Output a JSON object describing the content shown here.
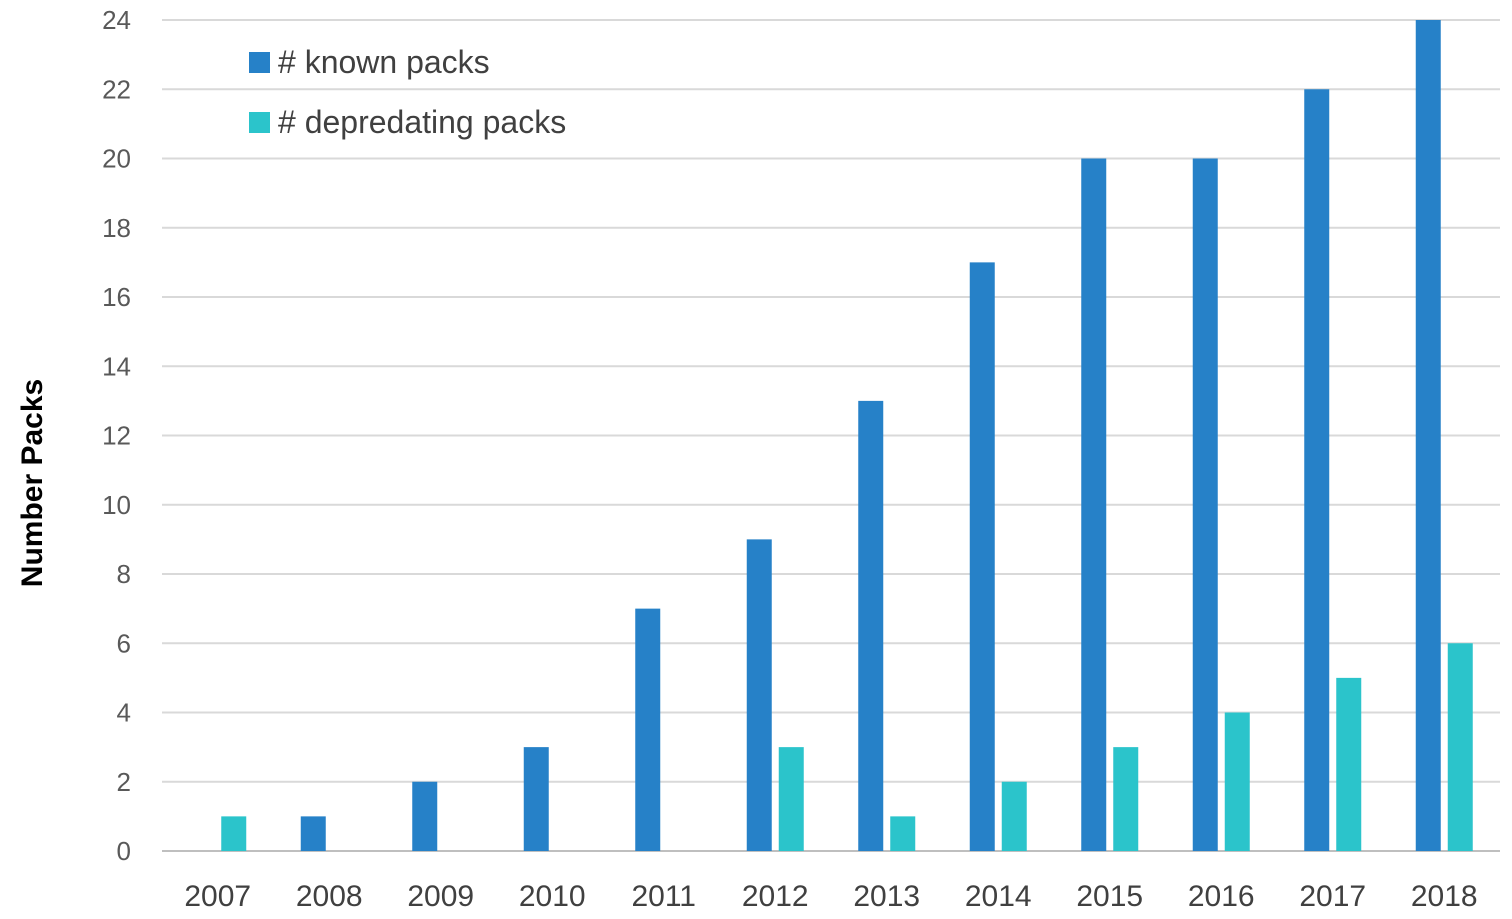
{
  "chart_data": {
    "type": "bar",
    "title": "",
    "xlabel": "",
    "ylabel": "Number Packs",
    "ylim": [
      0,
      24
    ],
    "yticks": [
      0,
      2,
      4,
      6,
      8,
      10,
      12,
      14,
      16,
      18,
      20,
      22,
      24
    ],
    "grid": true,
    "legend_position": "top-left",
    "categories": [
      "2007",
      "2008",
      "2009",
      "2010",
      "2011",
      "2012",
      "2013",
      "2014",
      "2015",
      "2016",
      "2017",
      "2018"
    ],
    "series": [
      {
        "name": "# known packs",
        "color": "#2681C8",
        "values": [
          0,
          1,
          2,
          3,
          7,
          9,
          13,
          17,
          20,
          20,
          22,
          24
        ]
      },
      {
        "name": "# depredating packs",
        "color": "#2BC4CB",
        "values": [
          1,
          0,
          0,
          0,
          0,
          3,
          1,
          2,
          3,
          4,
          5,
          6
        ]
      }
    ]
  }
}
